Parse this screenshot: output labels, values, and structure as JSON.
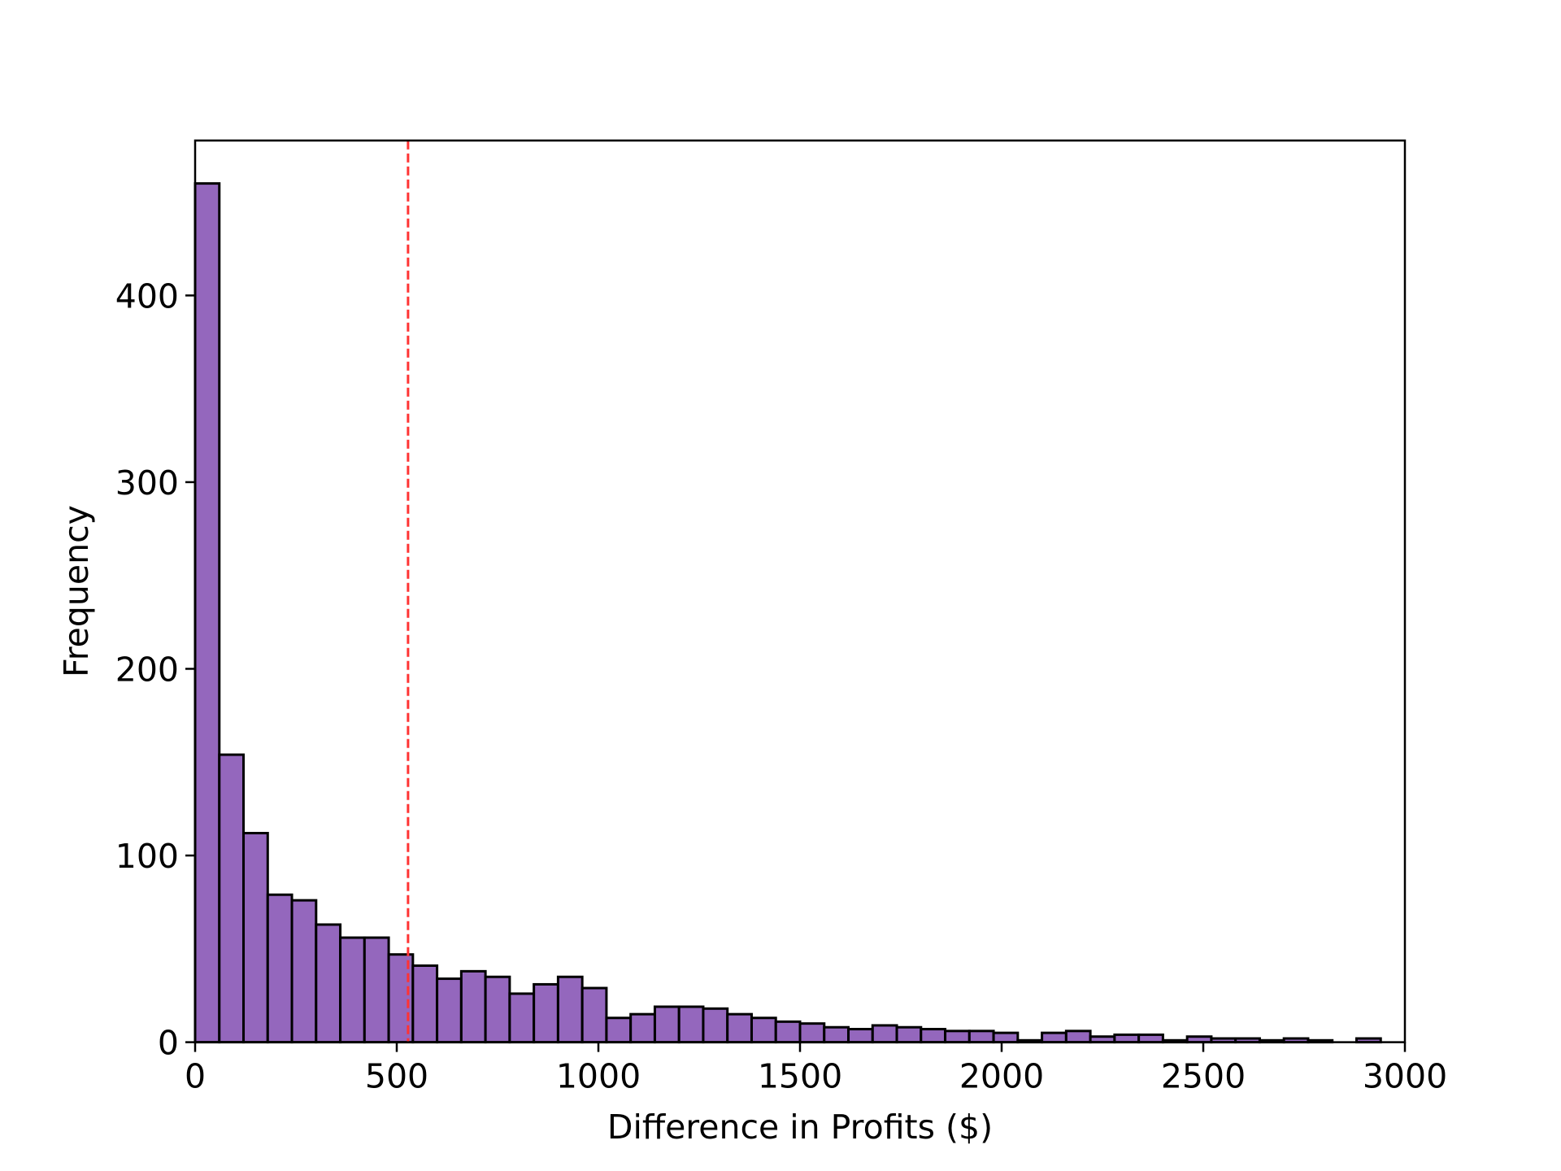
{
  "chart_data": {
    "type": "histogram",
    "xlabel": "Difference in Profits ($)",
    "ylabel": "Frequency",
    "bins": [
      0,
      60,
      120,
      180,
      240,
      300,
      360,
      420,
      480,
      540,
      600,
      660,
      720,
      780,
      840,
      900,
      960,
      1020,
      1080,
      1140,
      1200,
      1260,
      1320,
      1380,
      1440,
      1500,
      1560,
      1620,
      1680,
      1740,
      1800,
      1860,
      1920,
      1980,
      2040,
      2100,
      2160,
      2220,
      2280,
      2340,
      2400,
      2460,
      2520,
      2580,
      2640,
      2700,
      2760,
      2820,
      2880,
      2940
    ],
    "values": [
      460,
      154,
      112,
      79,
      76,
      63,
      56,
      56,
      47,
      41,
      34,
      38,
      35,
      26,
      31,
      35,
      29,
      13,
      15,
      19,
      19,
      18,
      15,
      13,
      11,
      10,
      8,
      7,
      9,
      8,
      7,
      6,
      6,
      5,
      1,
      5,
      6,
      3,
      4,
      4,
      1,
      3,
      2,
      2,
      1,
      2,
      1,
      0,
      2
    ],
    "color": "#9467bd",
    "edgecolor": "#000000",
    "mean_line": 528,
    "mean_line_color": "#ff3333",
    "xlim": [
      0,
      3000
    ],
    "xticks": [
      0,
      500,
      1000,
      1500,
      2000,
      2500,
      3000
    ],
    "ylim": [
      0,
      483
    ],
    "yticks": [
      0,
      100,
      200,
      300,
      400
    ]
  }
}
